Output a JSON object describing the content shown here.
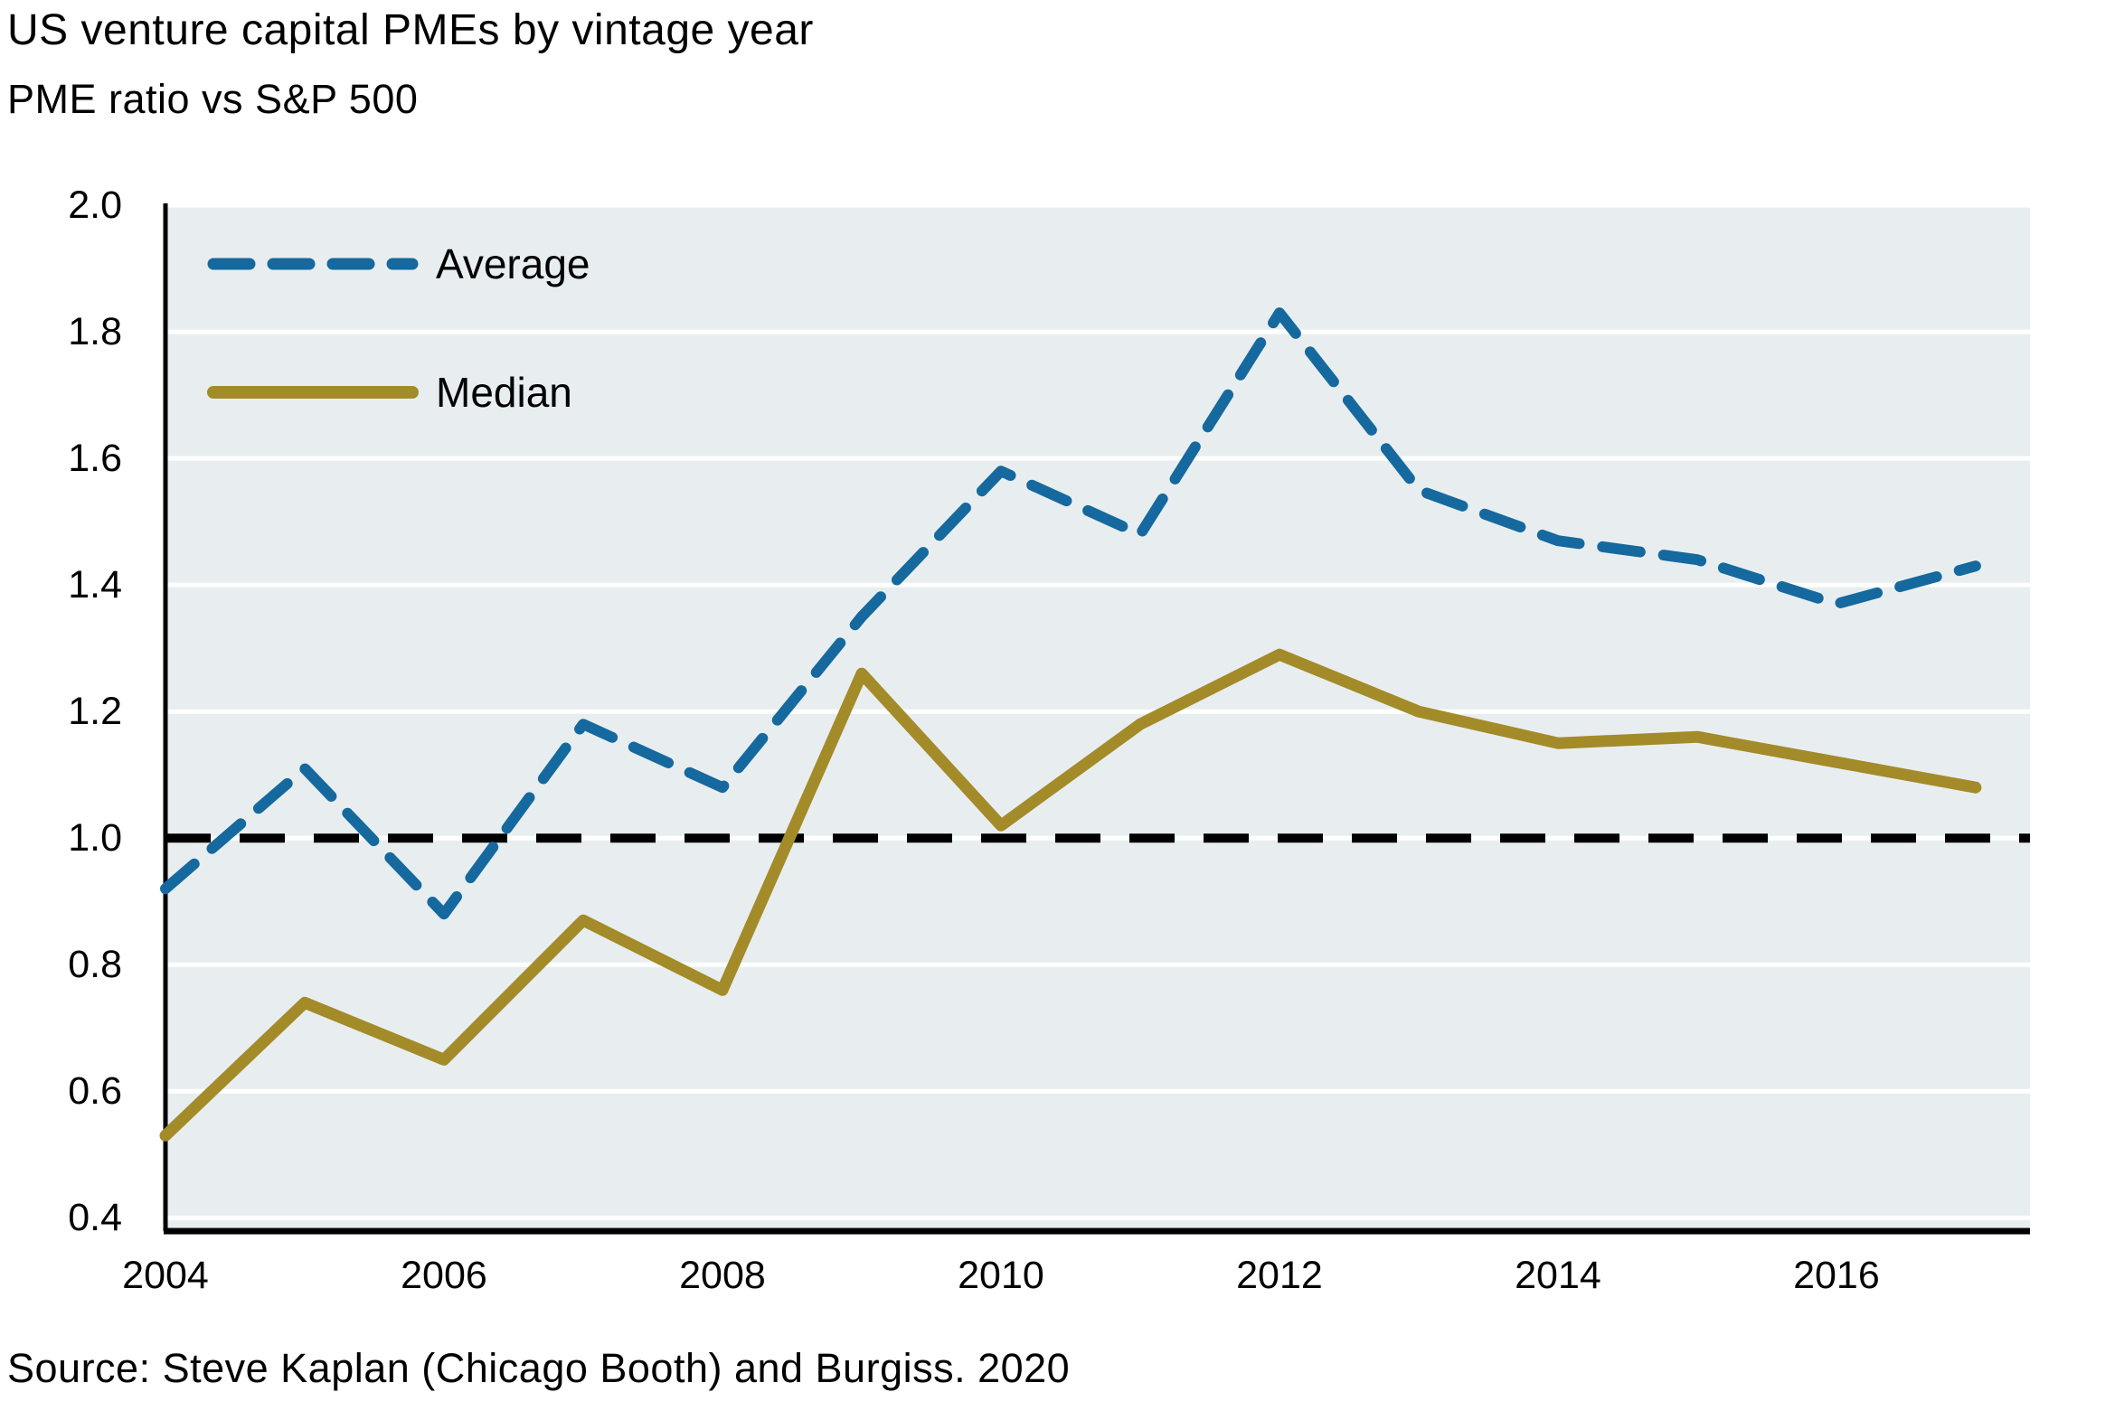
{
  "header": {
    "title": "US venture capital PMEs by vintage year",
    "subtitle": "PME ratio vs S&P 500"
  },
  "source_note": "Source: Steve Kaplan (Chicago Booth) and Burgiss. 2020",
  "colors": {
    "average_line": "#15699e",
    "median_line": "#a48b29",
    "reference_line": "#000000",
    "plot_background": "#e8eef0",
    "gridline": "#ffffff",
    "axis_spine": "#000000",
    "text": "#000000",
    "page_background": "#ffffff"
  },
  "legend": {
    "items": [
      {
        "label": "Average",
        "style": "dashed",
        "color": "#15699e"
      },
      {
        "label": "Median",
        "style": "solid",
        "color": "#a48b29"
      }
    ]
  },
  "chart_data": {
    "type": "line",
    "title": "US venture capital PMEs by vintage year",
    "subtitle": "PME ratio vs S&P 500",
    "xlabel": "vintage year",
    "ylabel": "PME ratio vs S&P 500",
    "x": [
      2004,
      2005,
      2006,
      2007,
      2008,
      2009,
      2010,
      2011,
      2012,
      2013,
      2014,
      2015,
      2016,
      2017
    ],
    "series": [
      {
        "name": "Average",
        "color": "#15699e",
        "dashed": true,
        "values": [
          0.92,
          1.11,
          0.88,
          1.18,
          1.08,
          1.35,
          1.58,
          1.48,
          1.83,
          1.55,
          1.47,
          1.44,
          1.37,
          1.43
        ]
      },
      {
        "name": "Median",
        "color": "#a48b29",
        "dashed": false,
        "values": [
          0.53,
          0.74,
          0.65,
          0.87,
          0.76,
          1.26,
          1.02,
          1.18,
          1.29,
          1.2,
          1.15,
          1.16,
          1.12,
          1.08
        ]
      }
    ],
    "reference_line": {
      "value": 1.0,
      "style": "dashed",
      "color": "#000000"
    },
    "y_ticks": [
      2.0,
      1.8,
      1.6,
      1.4,
      1.2,
      1.0,
      0.8,
      0.6,
      0.4
    ],
    "x_ticks": [
      2004,
      2006,
      2008,
      2010,
      2012,
      2014,
      2016
    ],
    "ylim": [
      0.379,
      2.003
    ],
    "xlim": [
      2004,
      2017.39
    ],
    "grid": "horizontal",
    "legend_position": "top-left"
  }
}
